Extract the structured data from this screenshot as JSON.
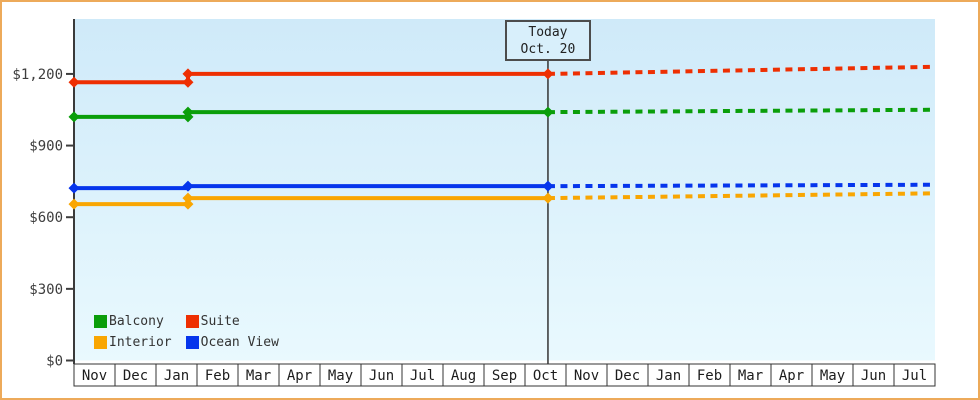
{
  "window": {
    "border_color": "#edaa5a",
    "background": "#ffffff"
  },
  "legend": {
    "items": [
      {
        "label": "Balcony",
        "color": "#0a9e0a"
      },
      {
        "label": "Suite",
        "color": "#ee2f02"
      },
      {
        "label": "Interior",
        "color": "#f9a602"
      },
      {
        "label": "Ocean View",
        "color": "#0635ec"
      }
    ]
  },
  "chart_data": {
    "type": "line",
    "description": "Cruise cabin price history (solid) and forecast after today (dashed)",
    "x_unit": "month cells from left edge; 0 = start of first Nov, 21 = end of final Jul",
    "x_axis_months": [
      "Nov",
      "Dec",
      "Jan",
      "Feb",
      "Mar",
      "Apr",
      "May",
      "Jun",
      "Jul",
      "Aug",
      "Sep",
      "Oct",
      "Nov",
      "Dec",
      "Jan",
      "Feb",
      "Mar",
      "Apr",
      "May",
      "Jun",
      "Jul"
    ],
    "ylim": [
      0,
      1430
    ],
    "y_ticks": [
      {
        "label": "$0",
        "value": 0
      },
      {
        "label": "$300",
        "value": 300
      },
      {
        "label": "$600",
        "value": 600
      },
      {
        "label": "$900",
        "value": 900
      },
      {
        "label": "$1,200",
        "value": 1200
      }
    ],
    "today": {
      "x": 11.56,
      "box_line1": "Today",
      "box_line2": "Oct. 20"
    },
    "series": [
      {
        "name": "Balcony",
        "color": "#0a9e0a",
        "solid": [
          [
            0,
            1020
          ],
          [
            2.78,
            1020
          ],
          [
            2.78,
            1040
          ],
          [
            11.56,
            1040
          ]
        ],
        "dashed": [
          [
            11.56,
            1040
          ],
          [
            21,
            1050
          ]
        ],
        "markers": [
          [
            0,
            1020
          ],
          [
            2.78,
            1020
          ],
          [
            2.78,
            1040
          ],
          [
            11.56,
            1040
          ]
        ]
      },
      {
        "name": "Suite",
        "color": "#ee2f02",
        "solid": [
          [
            0,
            1165
          ],
          [
            2.78,
            1165
          ],
          [
            2.78,
            1200
          ],
          [
            11.56,
            1200
          ]
        ],
        "dashed": [
          [
            11.56,
            1200
          ],
          [
            21,
            1230
          ]
        ],
        "markers": [
          [
            0,
            1165
          ],
          [
            2.78,
            1165
          ],
          [
            2.78,
            1200
          ],
          [
            11.56,
            1200
          ]
        ]
      },
      {
        "name": "Interior",
        "color": "#f9a602",
        "solid": [
          [
            0,
            655
          ],
          [
            2.78,
            655
          ],
          [
            2.78,
            680
          ],
          [
            11.56,
            680
          ]
        ],
        "dashed": [
          [
            11.56,
            680
          ],
          [
            21,
            700
          ]
        ],
        "markers": [
          [
            0,
            655
          ],
          [
            2.78,
            655
          ],
          [
            2.78,
            680
          ],
          [
            11.56,
            680
          ]
        ]
      },
      {
        "name": "Ocean View",
        "color": "#0635ec",
        "solid": [
          [
            0,
            722
          ],
          [
            2.78,
            722
          ],
          [
            2.78,
            730
          ],
          [
            11.56,
            730
          ]
        ],
        "dashed": [
          [
            11.56,
            730
          ],
          [
            21,
            736
          ]
        ],
        "markers": [
          [
            0,
            722
          ],
          [
            2.78,
            730
          ],
          [
            11.56,
            730
          ]
        ]
      }
    ]
  }
}
